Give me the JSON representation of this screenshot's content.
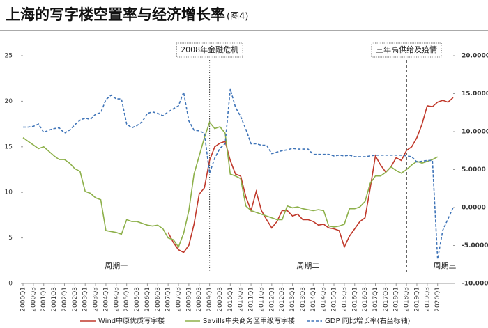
{
  "chart_data": {
    "type": "line",
    "title": "上海的写字楼空置率与经济增长率",
    "figure_label": "(图4)",
    "categories": [
      "2000Q1",
      null,
      "2000Q3",
      null,
      "2001Q1",
      null,
      "2001Q3",
      null,
      "2002Q1",
      null,
      "2002Q3",
      null,
      "2003Q1",
      null,
      "2003Q3",
      null,
      "2004Q1",
      null,
      "2004Q3",
      null,
      "2005Q1",
      null,
      "2005Q3",
      null,
      "2006Q1",
      null,
      "2006Q3",
      null,
      "2007Q1",
      null,
      "2007Q3",
      null,
      "2008Q1",
      null,
      "2008Q3",
      null,
      "2009Q1",
      null,
      "2009Q3",
      null,
      "2010Q1",
      null,
      "2010Q3",
      null,
      "2011Q1",
      null,
      "2011Q3",
      null,
      "2012Q1",
      null,
      "2012Q3",
      null,
      "2013Q1",
      null,
      "2013Q3",
      null,
      "2014Q1",
      null,
      "2014Q3",
      null,
      "2015Q1",
      null,
      "2015Q3",
      null,
      "2016Q1",
      null,
      "2016Q3",
      null,
      "2017Q1",
      null,
      "2017Q3",
      null,
      "2018Q1",
      null,
      "2018Q3",
      null,
      "2019Q1",
      null,
      "2019Q3",
      null,
      "2020Q1",
      null,
      null,
      null
    ],
    "series": [
      {
        "name": "Wind中原优质写字楼",
        "color": "#c0392b",
        "dash": false,
        "values": [
          null,
          null,
          null,
          null,
          null,
          null,
          null,
          null,
          null,
          null,
          null,
          null,
          null,
          null,
          null,
          null,
          null,
          null,
          null,
          null,
          null,
          null,
          null,
          null,
          null,
          null,
          null,
          null,
          5.6,
          4.5,
          3.7,
          3.4,
          4.2,
          6.5,
          9.8,
          10.5,
          13.5,
          15,
          15.4,
          15.6,
          13.5,
          12,
          11.8,
          9.5,
          8,
          10.1,
          8,
          7,
          6.1,
          6.8,
          8,
          8,
          7.4,
          7.6,
          7,
          7,
          6.8,
          6.4,
          6.5,
          6.1,
          6,
          5.8,
          4,
          5.2,
          6,
          6.8,
          7.2,
          10.5,
          14,
          13,
          12.2,
          12.8,
          13.8,
          13.5,
          14.6,
          15,
          16,
          17.5,
          19.5,
          19.4,
          19.9,
          20.1,
          19.9,
          20.4
        ]
      },
      {
        "name": "Savills中央商务区甲级写字楼",
        "color": "#8db04a",
        "dash": false,
        "values": [
          16,
          15.6,
          15.2,
          14.8,
          15,
          14.5,
          14,
          13.6,
          13.6,
          13.2,
          12.6,
          12.3,
          10.1,
          9.9,
          9.4,
          9.2,
          5.8,
          5.7,
          5.6,
          5.4,
          7,
          6.8,
          6.8,
          6.6,
          6.4,
          6.3,
          6.4,
          6,
          5,
          4.8,
          4,
          5.5,
          8,
          12,
          14,
          16,
          17.7,
          17,
          17.2,
          16.5,
          12,
          11.8,
          11.5,
          8.5,
          8,
          7.8,
          7.6,
          7.4,
          7.2,
          7,
          7,
          8.5,
          8.3,
          8.4,
          8.2,
          8.1,
          8,
          8.1,
          8,
          6.3,
          6.2,
          6.3,
          6.5,
          8.2,
          8.2,
          8.4,
          9,
          11,
          11.8,
          11.8,
          12.2,
          12.8,
          12.4,
          12.1,
          12.5,
          13,
          13.4,
          13.2,
          13.4,
          13.6,
          13.9,
          null,
          null,
          null
        ]
      },
      {
        "name": "GDP 同比增长率(右坐标轴)",
        "color": "#3f74b8",
        "dash": true,
        "axis": "y2",
        "values": [
          10.6,
          10.6,
          10.7,
          11,
          9.9,
          10.2,
          10.4,
          10.5,
          9.8,
          10.2,
          10.9,
          11.5,
          11.8,
          11.6,
          12.3,
          12.5,
          14.2,
          14.8,
          14.3,
          14.3,
          11,
          10.5,
          10.8,
          11.3,
          12.4,
          12.6,
          12.4,
          12.1,
          12.6,
          13,
          13.4,
          15.2,
          11.4,
          10.2,
          10.1,
          9.8,
          4.5,
          6.5,
          7.8,
          8.4,
          15.6,
          13.2,
          12,
          10.3,
          8.4,
          8.4,
          8.2,
          8.2,
          7.1,
          7.3,
          7.5,
          7.6,
          7.8,
          7.7,
          7.7,
          7.7,
          7,
          7,
          7,
          7,
          6.8,
          6.9,
          6.8,
          6.9,
          6.7,
          6.7,
          6.7,
          6.8,
          6.9,
          6.9,
          6.9,
          6.9,
          6.9,
          6.9,
          6.8,
          6.7,
          6,
          6.1,
          6.2,
          6.2,
          -6.8,
          -3,
          -1.5,
          0
        ]
      }
    ],
    "ylim": [
      0,
      25
    ],
    "yticks": [
      0,
      5,
      10,
      15,
      20,
      25
    ],
    "y2lim": [
      -10,
      20
    ],
    "y2ticks": [
      {
        "value": -10,
        "label": "-10.0000"
      },
      {
        "value": -5,
        "label": "-5.0000"
      },
      {
        "value": 0,
        "label": "0.0000"
      },
      {
        "value": 5,
        "label": "5.0000"
      },
      {
        "value": 10,
        "label": "10.0000"
      },
      {
        "value": 15,
        "label": "15.0000"
      },
      {
        "value": 20,
        "label": "20.0000"
      }
    ],
    "annotations": [
      {
        "text": "2008年金融危机",
        "x": "2009Q1",
        "style": "dotted"
      },
      {
        "text": "三年高供给及疫情",
        "x": "2018Q3",
        "style": "dashed"
      }
    ],
    "regions": [
      "周期一",
      "周期二",
      "周期三"
    ]
  }
}
